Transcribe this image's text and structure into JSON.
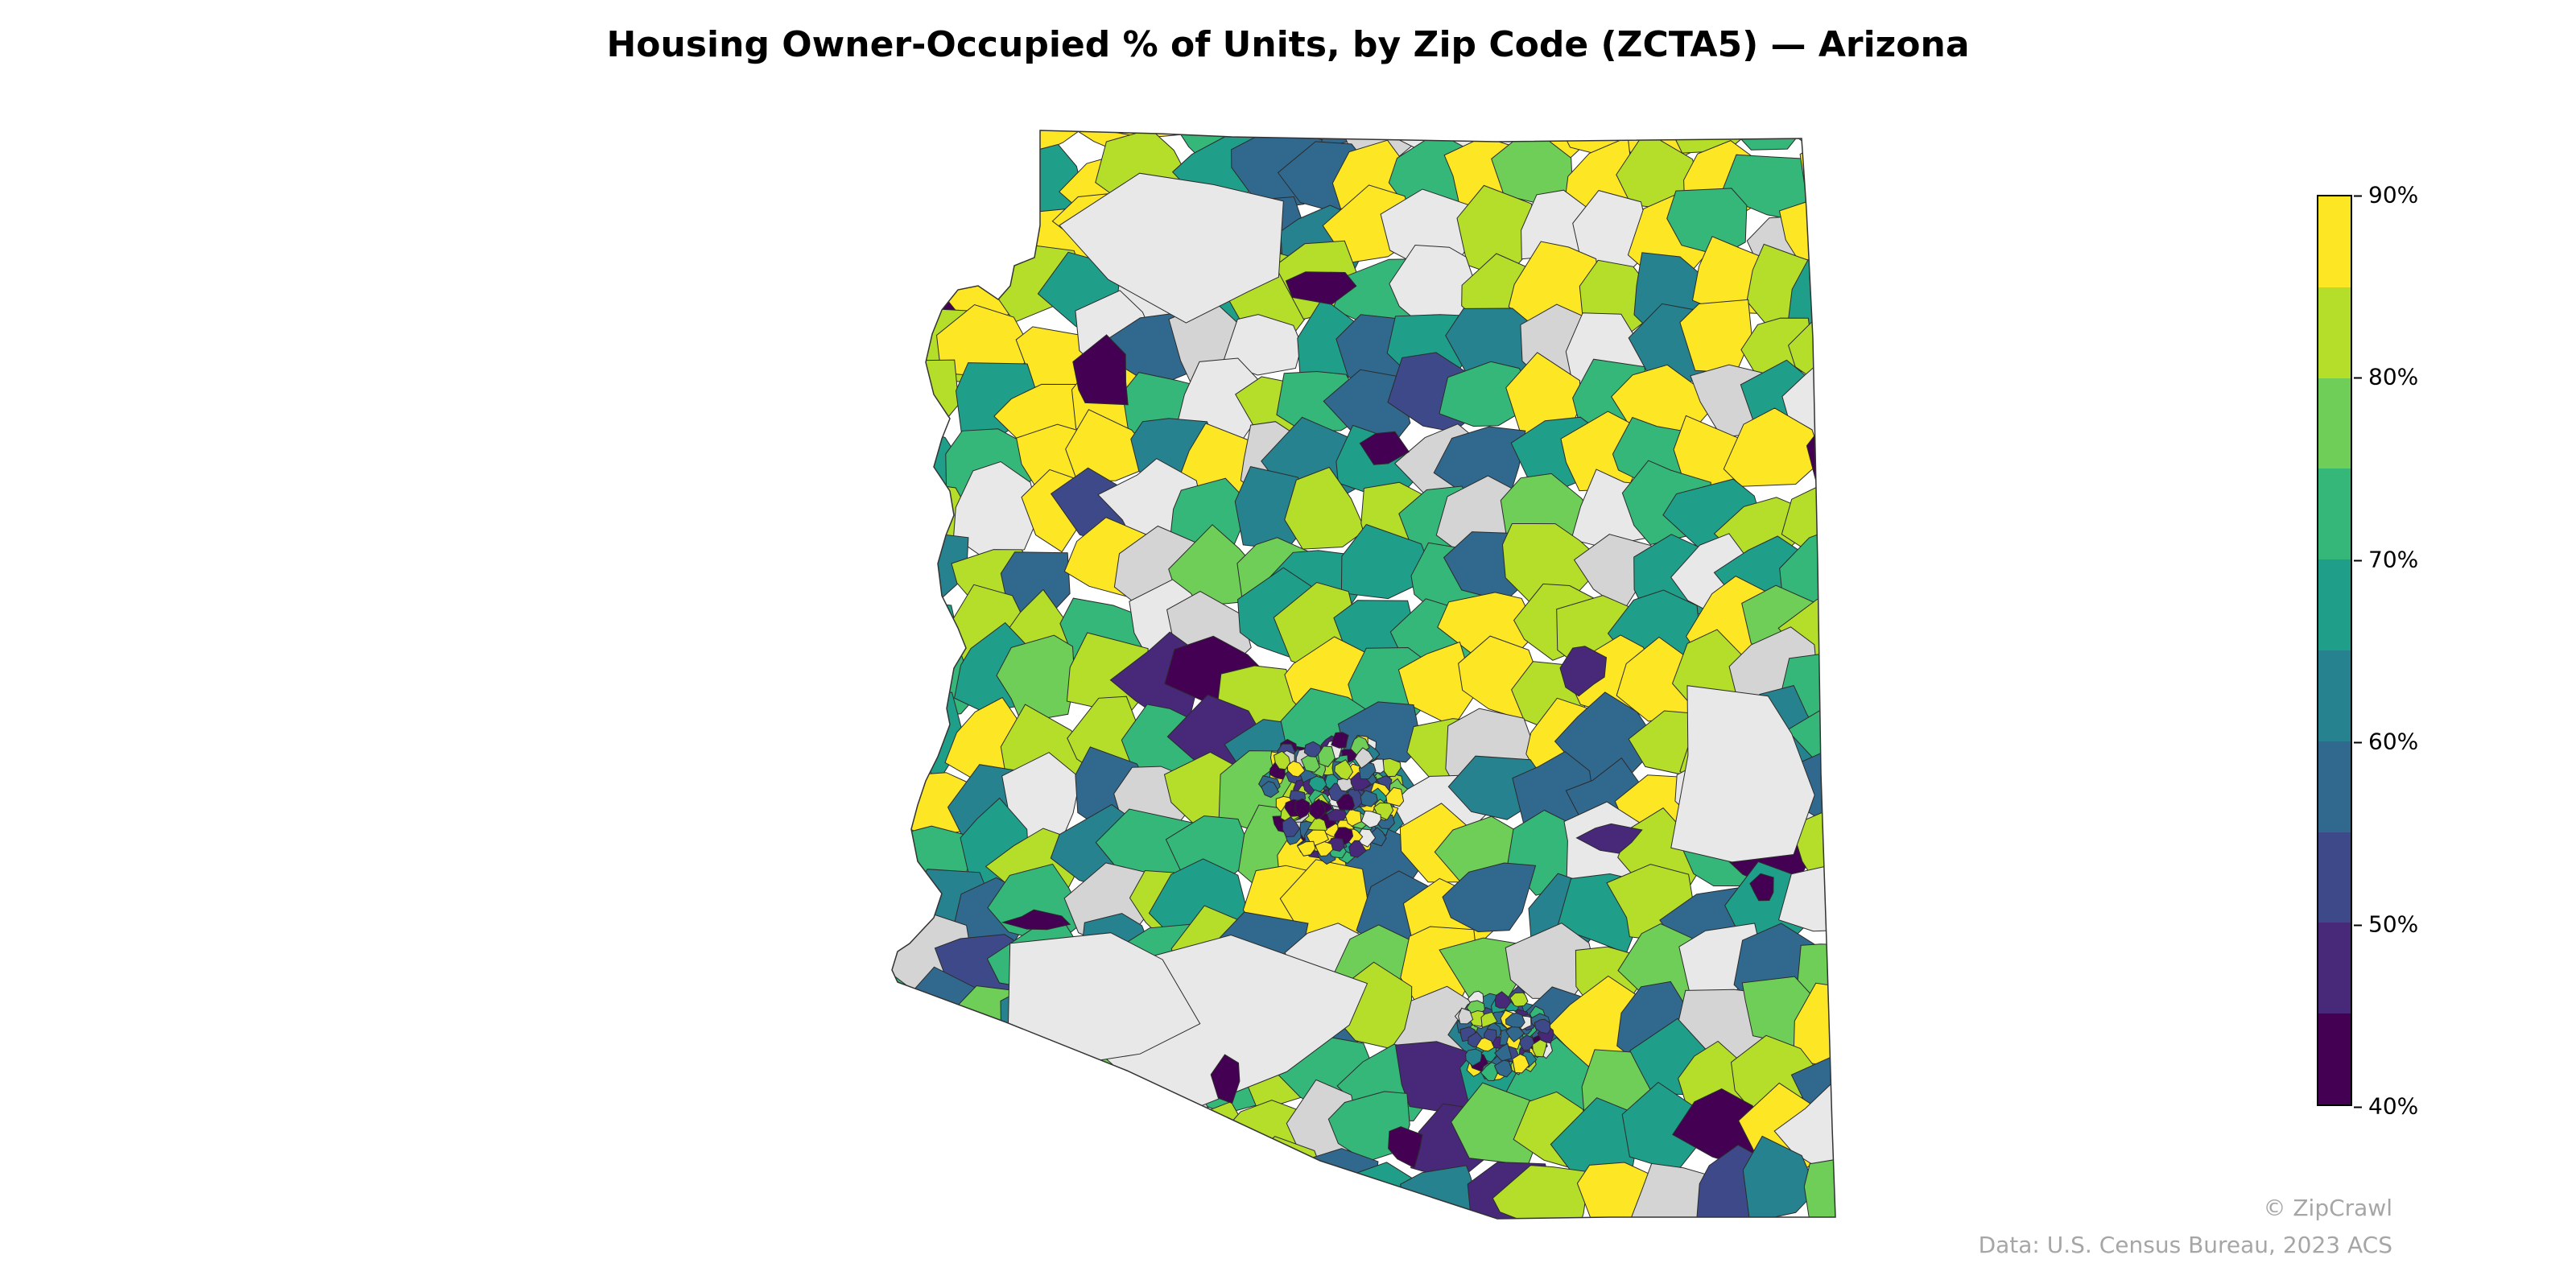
{
  "title": "Housing Owner-Occupied % of Units, by Zip Code (ZCTA5) — Arizona",
  "legend": {
    "ticks": [
      "40%",
      "50%",
      "60%",
      "70%",
      "80%",
      "90%"
    ],
    "colors": [
      "#440154",
      "#482878",
      "#3e4989",
      "#31688e",
      "#26828e",
      "#1f9e89",
      "#35b779",
      "#6ece58",
      "#b5de2b",
      "#fde725"
    ]
  },
  "no_data_colors": [
    "#e8e8e8",
    "#d4d4d4"
  ],
  "credit": "© ZipCrawl",
  "source": "Data: U.S. Census Bureau, 2023 ACS"
}
